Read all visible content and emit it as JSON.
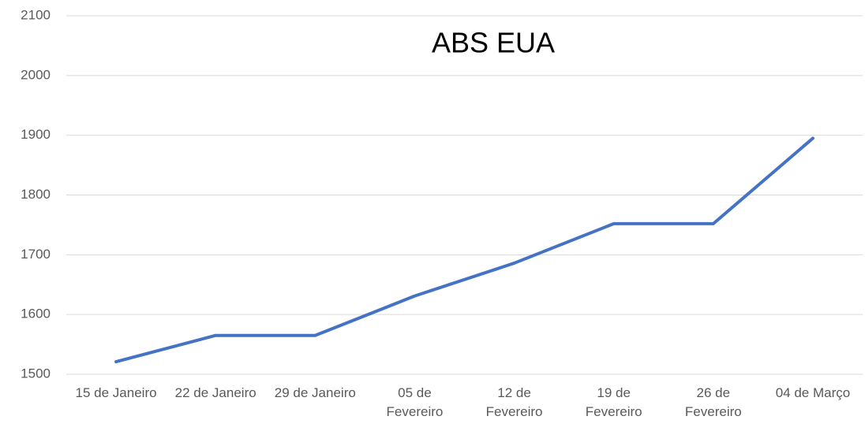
{
  "chart_data": {
    "type": "line",
    "title": "ABS EUA",
    "categories": [
      "15 de Janeiro",
      "22 de Janeiro",
      "29 de Janeiro",
      "05 de Fevereiro",
      "12 de Fevereiro",
      "19 de Fevereiro",
      "26 de Fevereiro",
      "04 de Março"
    ],
    "series": [
      {
        "name": "ABS EUA",
        "color": "#4472c4",
        "values": [
          1521,
          1565,
          1565,
          1631,
          1686,
          1752,
          1752,
          1895
        ]
      }
    ],
    "ylim": [
      1500,
      2100
    ],
    "yticks": [
      1500,
      1600,
      1700,
      1800,
      1900,
      2000,
      2100
    ],
    "grid": true
  }
}
